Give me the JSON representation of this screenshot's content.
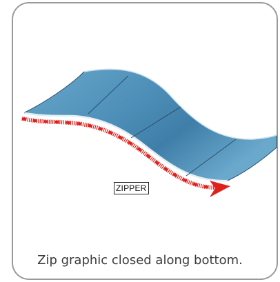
{
  "figure": {
    "zipper_label": "ZIPPER",
    "caption": "Zip graphic closed along bottom.",
    "colors": {
      "panel_fill": "#5e9dc3",
      "panel_edge": "#2b4f68",
      "zipper": "#e0211b",
      "frame_border": "#9a9a9a"
    }
  }
}
